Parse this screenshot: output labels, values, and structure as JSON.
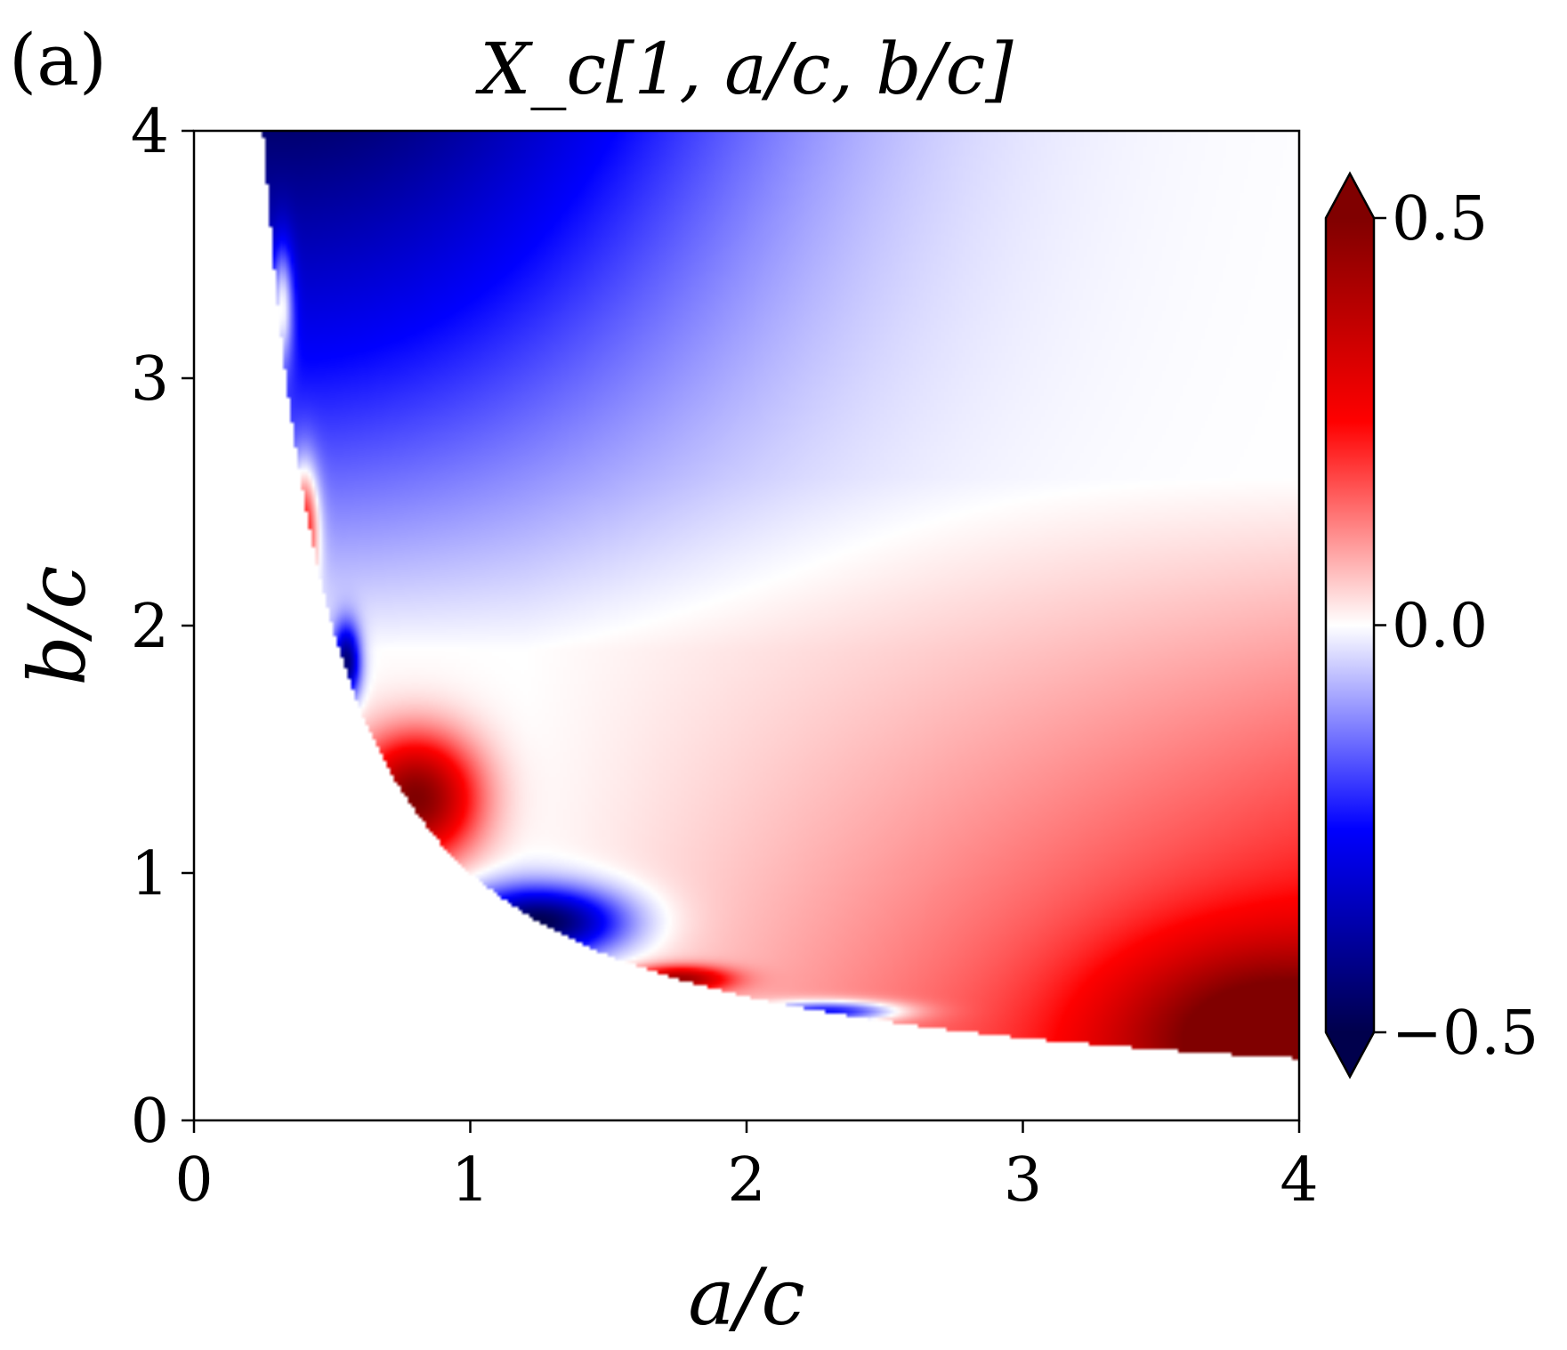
{
  "panel_label": "(a)",
  "chart_data": {
    "type": "heatmap",
    "title": "X_c[1, a/c, b/c]",
    "xlabel": "a/c",
    "ylabel": "b/c",
    "xlim": [
      0,
      4
    ],
    "ylim": [
      0,
      4
    ],
    "xticks": [
      0,
      1,
      2,
      3,
      4
    ],
    "yticks": [
      0,
      1,
      2,
      3,
      4
    ],
    "domain_boundary": "a*b >= 1 (region below the hyperbola b = 1/a is empty)",
    "colorbar": {
      "colormap": "seismic",
      "vmin": -0.5,
      "vmax": 0.5,
      "ticks": [
        -0.5,
        0.0,
        0.5
      ],
      "tick_labels": [
        "−0.5",
        "0.0",
        "0.5"
      ],
      "extend": "both",
      "placement": "right",
      "colors": {
        "low": "#00004c",
        "mid_low": "#0000ff",
        "center": "#ffffff",
        "mid_high": "#ff0000",
        "high": "#800000"
      }
    },
    "features": [
      {
        "name": "upper-left blue region",
        "x": 0.6,
        "y": 3.8,
        "value": -0.45
      },
      {
        "name": "dark red lobe",
        "x": 0.8,
        "y": 1.3,
        "value": 0.5
      },
      {
        "name": "dark blue lobe",
        "x": 1.25,
        "y": 0.8,
        "value": -0.5
      },
      {
        "name": "red strip near boundary",
        "x": 1.75,
        "y": 0.57,
        "value": 0.4
      },
      {
        "name": "blue strip near boundary",
        "x": 2.3,
        "y": 0.44,
        "value": -0.35
      },
      {
        "name": "lower-right red region",
        "x": 3.9,
        "y": 0.35,
        "value": 0.35
      }
    ]
  }
}
